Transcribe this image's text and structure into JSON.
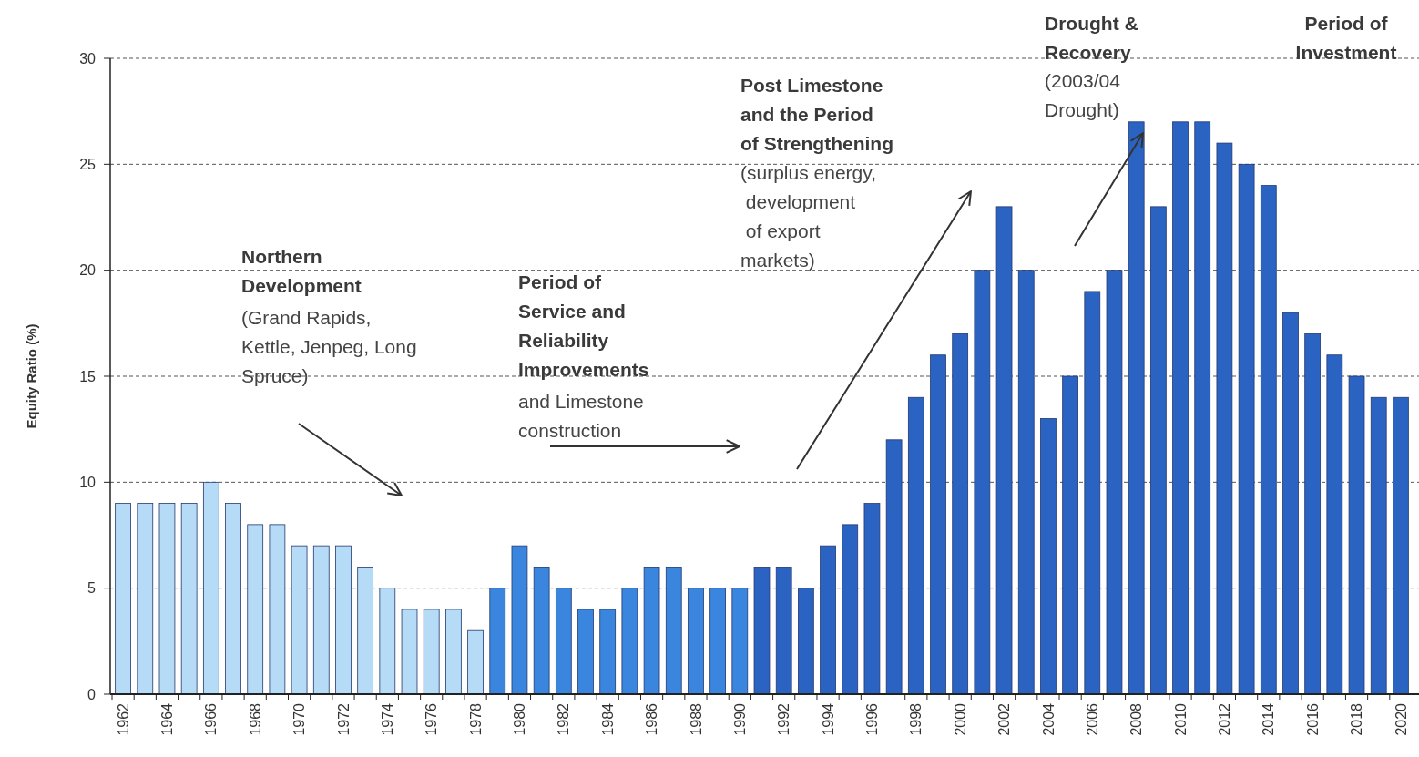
{
  "chart_data": {
    "type": "bar",
    "ylabel": "Equity Ratio (%)",
    "categories": [
      "1962",
      null,
      "1964",
      null,
      "1966",
      null,
      "1968",
      null,
      "1970",
      null,
      "1972",
      null,
      "1974",
      null,
      "1976",
      null,
      "1978",
      null,
      "1980",
      null,
      "1982",
      null,
      "1984",
      null,
      "1986",
      null,
      "1988",
      null,
      "1990",
      null,
      "1992",
      null,
      "1994",
      null,
      "1996",
      null,
      "1998",
      null,
      "2000",
      null,
      "2002",
      null,
      "2004",
      null,
      "2006",
      null,
      "2008",
      null,
      "2010",
      null,
      "2012",
      null,
      "2014",
      null,
      "2016",
      null,
      "2018",
      null,
      "2020"
    ],
    "values": [
      9,
      9,
      9,
      9,
      10,
      9,
      8,
      8,
      7,
      7,
      7,
      6,
      5,
      4,
      4,
      4,
      3,
      5,
      7,
      6,
      5,
      4,
      4,
      5,
      6,
      6,
      5,
      5,
      5,
      6,
      6,
      5,
      7,
      8,
      9,
      12,
      14,
      16,
      17,
      20,
      23,
      20,
      13,
      15,
      19,
      20,
      27,
      23,
      27,
      27,
      26,
      25,
      24,
      18,
      17,
      16,
      15,
      14,
      14
    ],
    "colors": [
      "#b5dbf6",
      "#b5dbf6",
      "#b5dbf6",
      "#b5dbf6",
      "#b5dbf6",
      "#b5dbf6",
      "#b5dbf6",
      "#b5dbf6",
      "#b5dbf6",
      "#b5dbf6",
      "#b5dbf6",
      "#b5dbf6",
      "#b5dbf6",
      "#b5dbf6",
      "#b5dbf6",
      "#b5dbf6",
      "#b5dbf6",
      "#3a85dd",
      "#3a85dd",
      "#3a85dd",
      "#3a85dd",
      "#3a85dd",
      "#3a85dd",
      "#3a85dd",
      "#3a85dd",
      "#3a85dd",
      "#3a85dd",
      "#3a85dd",
      "#3a85dd",
      "#2a63c2",
      "#2a63c2",
      "#2a63c2",
      "#2a63c2",
      "#2a63c2",
      "#2a63c2",
      "#2a63c2",
      "#2a63c2",
      "#2a63c2",
      "#2a63c2",
      "#2a63c2",
      "#2a63c2",
      "#2a63c2",
      "#2a63c2",
      "#2a63c2",
      "#2a63c2",
      "#2a63c2",
      "#2a63c2",
      "#2a63c2",
      "#2a63c2",
      "#2a63c2",
      "#2a63c2",
      "#2a63c2",
      "#2a63c2",
      "#2a63c2",
      "#2a63c2",
      "#2a63c2",
      "#2a63c2",
      "#2a63c2",
      "#2a63c2"
    ],
    "ylim": [
      0,
      30
    ],
    "yticks": [
      0,
      5,
      10,
      15,
      20,
      25,
      30
    ],
    "grid": "y",
    "annotations": [
      "Northern\nDevelopment",
      "(Grand Rapids,\nKettle, Jenpeg, Long\nSpruce)",
      "Period of\nService and\nReliability\nImprovements",
      "and Limestone\nconstruction",
      "Post Limestone\nand the Period\nof Strengthening",
      "(surplus energy,\n development\n of export\nmarkets)",
      "Drought &\nRecovery",
      "(2003/04\nDrought)",
      "Period of\nInvestment"
    ]
  }
}
